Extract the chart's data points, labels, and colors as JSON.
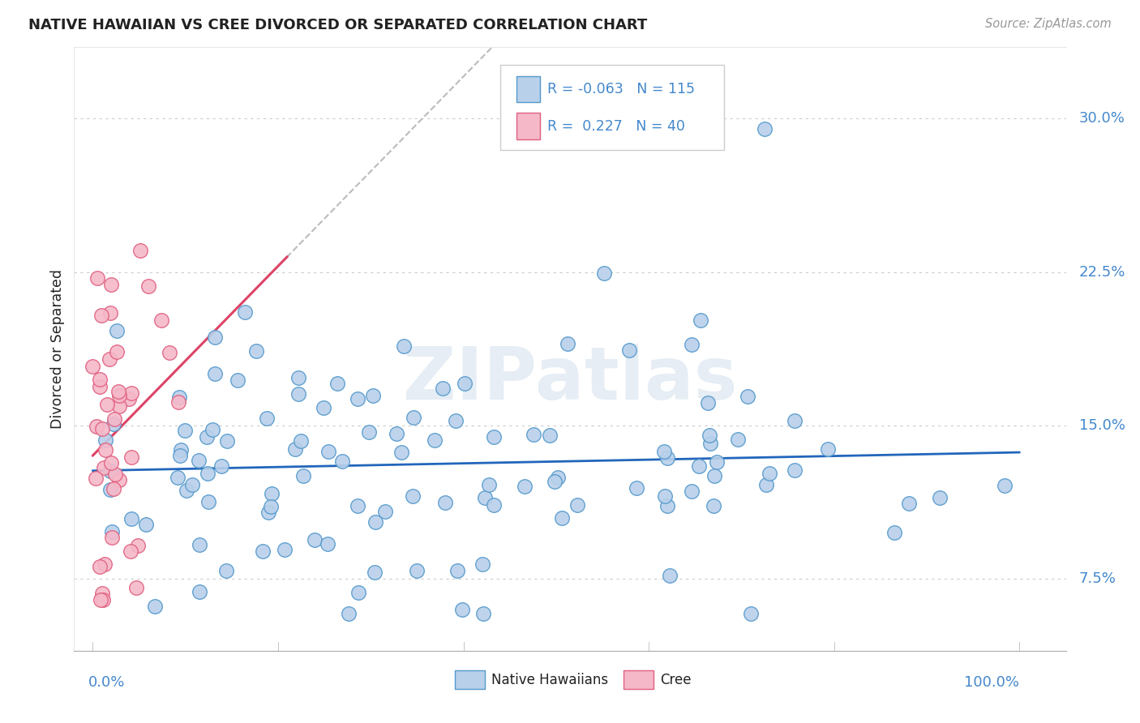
{
  "title": "NATIVE HAWAIIAN VS CREE DIVORCED OR SEPARATED CORRELATION CHART",
  "source": "Source: ZipAtlas.com",
  "ylabel": "Divorced or Separated",
  "watermark": "ZIPatlas",
  "legend_blue_R": "-0.063",
  "legend_blue_N": "115",
  "legend_pink_R": "0.227",
  "legend_pink_N": "40",
  "blue_fill": "#b8d0ea",
  "blue_edge": "#5599cc",
  "pink_fill": "#f5b8c8",
  "pink_edge": "#e06080",
  "blue_line": "#2266bb",
  "pink_line": "#dd4466",
  "dash_line": "#bbbbbb",
  "grid_color": "#cccccc",
  "title_color": "#222222",
  "axis_label_color": "#4488cc",
  "yticks": [
    0.075,
    0.15,
    0.225,
    0.3
  ],
  "ytick_labels": [
    "7.5%",
    "15.0%",
    "22.5%",
    "30.0%"
  ],
  "xlim": [
    -0.02,
    1.05
  ],
  "ylim": [
    0.04,
    0.335
  ]
}
